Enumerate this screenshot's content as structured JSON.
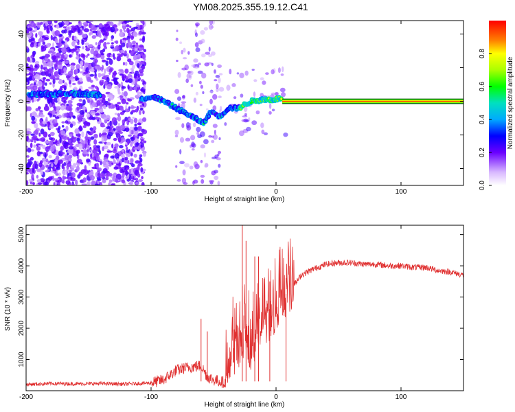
{
  "title": "YM08.2025.355.19.12.C41",
  "chart_data": [
    {
      "type": "heatmap",
      "panel": "spectrogram",
      "xlabel": "Height of straight line (km)",
      "ylabel": "Frequency (Hz)",
      "xlim": [
        -200,
        150
      ],
      "ylim": [
        -50,
        48
      ],
      "xticks": [
        -200,
        -100,
        0,
        100
      ],
      "yticks": [
        -40,
        -20,
        0,
        20,
        40
      ],
      "colorbar": {
        "label": "Normalized spectral amplitude",
        "range": [
          0.0,
          1.0
        ],
        "ticks": [
          0.0,
          0.2,
          0.4,
          0.6,
          0.8
        ]
      },
      "ridge_path": [
        {
          "x": -198,
          "f": 4
        },
        {
          "x": -180,
          "f": 4
        },
        {
          "x": -165,
          "f": 5
        },
        {
          "x": -150,
          "f": 4
        },
        {
          "x": -140,
          "f": 4
        },
        {
          "x": -108,
          "f": 2
        },
        {
          "x": -95,
          "f": 2
        },
        {
          "x": -85,
          "f": -2
        },
        {
          "x": -75,
          "f": -6
        },
        {
          "x": -65,
          "f": -10
        },
        {
          "x": -58,
          "f": -13
        },
        {
          "x": -52,
          "f": -6
        },
        {
          "x": -45,
          "f": -9
        },
        {
          "x": -38,
          "f": -4
        },
        {
          "x": -30,
          "f": -4
        },
        {
          "x": -20,
          "f": 0
        },
        {
          "x": -10,
          "f": 1
        },
        {
          "x": -2,
          "f": 1
        },
        {
          "x": 5,
          "f": 2
        }
      ],
      "steady_band": {
        "x_start": 5,
        "x_end": 150,
        "f": 0,
        "amplitude": 0.95
      }
    },
    {
      "type": "line",
      "panel": "snr",
      "xlabel": "Height of straight line (km)",
      "ylabel": "SNR (10 * v/v)",
      "xlim": [
        -200,
        150
      ],
      "ylim": [
        0,
        5300
      ],
      "xticks": [
        -200,
        -100,
        0,
        100
      ],
      "yticks": [
        1000,
        2000,
        3000,
        4000,
        5000
      ],
      "series": [
        {
          "name": "SNR",
          "color": "#e03030",
          "x": [
            -200,
            -180,
            -160,
            -140,
            -120,
            -100,
            -90,
            -80,
            -70,
            -60,
            -55,
            -50,
            -45,
            -40,
            -35,
            -30,
            -25,
            -20,
            -15,
            -10,
            -5,
            0,
            5,
            10,
            15,
            20,
            30,
            40,
            50,
            60,
            70,
            80,
            90,
            100,
            110,
            120,
            130,
            140,
            150
          ],
          "values": [
            200,
            230,
            220,
            230,
            210,
            250,
            350,
            650,
            750,
            800,
            450,
            350,
            300,
            250,
            1100,
            1400,
            1500,
            1300,
            1800,
            2000,
            2200,
            2500,
            2800,
            3100,
            3400,
            3700,
            3900,
            4050,
            4100,
            4100,
            4050,
            4050,
            4000,
            4000,
            3950,
            3950,
            3850,
            3800,
            3700
          ]
        }
      ],
      "spikes": [
        {
          "x": -27,
          "y": 5300
        },
        {
          "x": -24,
          "y": 4800
        },
        {
          "x": -17,
          "y": 4300
        },
        {
          "x": -14,
          "y": 4300
        },
        {
          "x": -60,
          "y": 2300
        },
        {
          "x": -55,
          "y": 1900
        },
        {
          "x": -5,
          "y": 3500
        },
        {
          "x": 8,
          "y": 3100
        }
      ]
    }
  ]
}
